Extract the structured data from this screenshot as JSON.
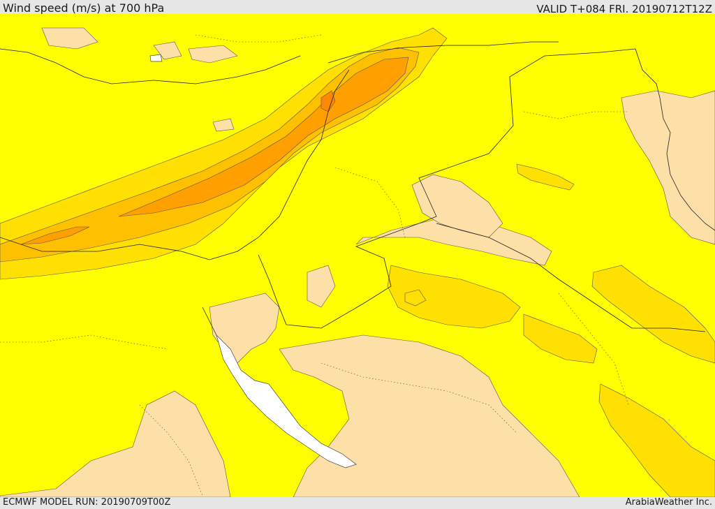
{
  "header": {
    "title": "Wind speed (m/s) at 700 hPa",
    "valid": "VALID T+084 FRI. 20190712T12Z"
  },
  "footer": {
    "model_run": "ECMWF MODEL RUN: 20190709T00Z",
    "credit": "ArabiaWeather Inc."
  },
  "map": {
    "colors": {
      "lowest": "#fde0a8",
      "low": "#ffff00",
      "moderate": "#ffe000",
      "high": "#ffc000",
      "higher": "#ffa000",
      "highest": "#ff8800",
      "water_gap": "#ffffff",
      "border": "#222222"
    }
  }
}
